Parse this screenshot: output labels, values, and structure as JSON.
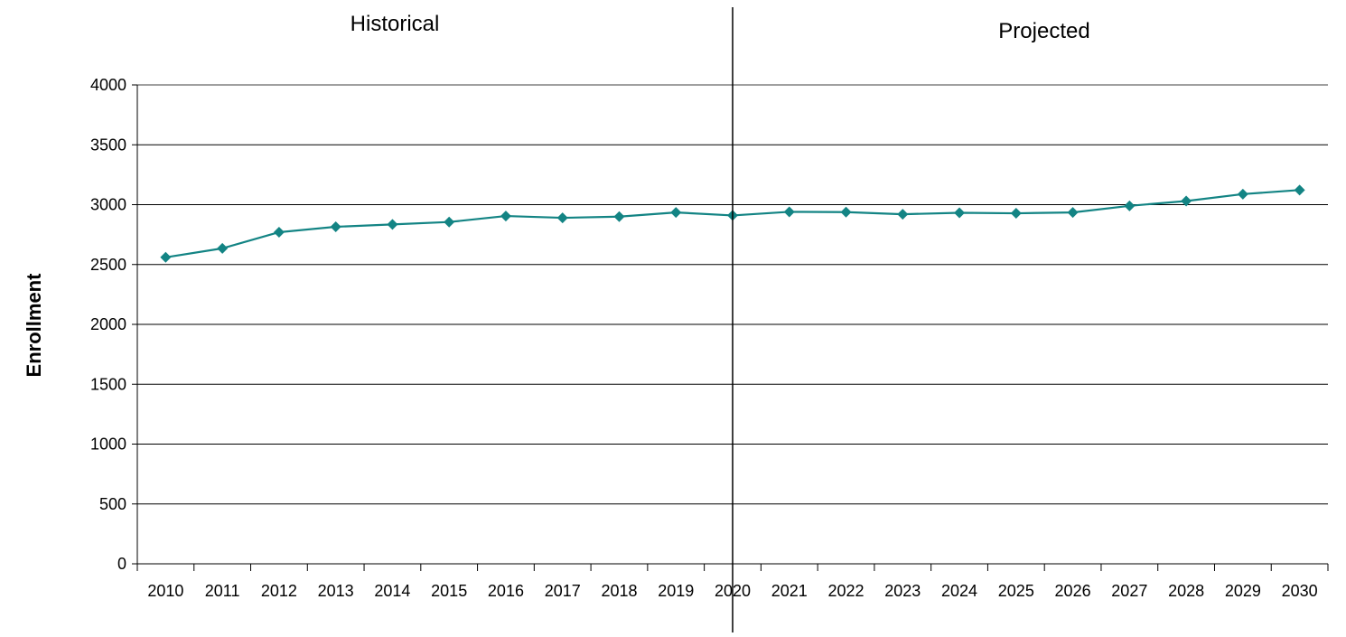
{
  "chart_data": {
    "type": "line",
    "ylabel": "Enrollment",
    "xlabel": "",
    "ylim": [
      0,
      4000
    ],
    "yticks": [
      0,
      500,
      1000,
      1500,
      2000,
      2500,
      3000,
      3500,
      4000
    ],
    "grid": true,
    "sections": [
      {
        "label": "Historical"
      },
      {
        "label": "Projected"
      }
    ],
    "divider_year": "2020",
    "colors": {
      "series": "#138484",
      "grid": "#000000",
      "frame": "#808080"
    },
    "categories": [
      "2010",
      "2011",
      "2012",
      "2013",
      "2014",
      "2015",
      "2016",
      "2017",
      "2018",
      "2019",
      "2020",
      "2021",
      "2022",
      "2023",
      "2024",
      "2025",
      "2026",
      "2027",
      "2028",
      "2029",
      "2030"
    ],
    "series": [
      {
        "values": [
          2560,
          2635,
          2770,
          2815,
          2835,
          2855,
          2905,
          2890,
          2900,
          2935,
          2910,
          2940,
          2938,
          2920,
          2932,
          2928,
          2935,
          2990,
          3030,
          3088,
          3122
        ]
      }
    ]
  }
}
